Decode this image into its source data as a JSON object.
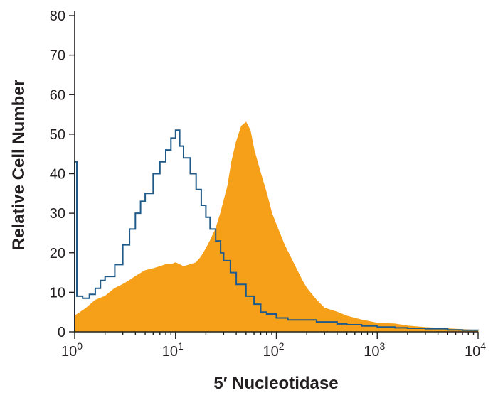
{
  "chart_data": {
    "type": "area",
    "xlabel": "5′ Nucleotidase",
    "ylabel": "Relative Cell Number",
    "x_scale": "log",
    "xlim": [
      1,
      10000
    ],
    "ylim": [
      0,
      80
    ],
    "x_ticks": [
      {
        "value": 1,
        "base": "10",
        "exp": "0"
      },
      {
        "value": 10,
        "base": "10",
        "exp": "1"
      },
      {
        "value": 100,
        "base": "10",
        "exp": "2"
      },
      {
        "value": 1000,
        "base": "10",
        "exp": "3"
      },
      {
        "value": 10000,
        "base": "10",
        "exp": "4"
      }
    ],
    "y_ticks": [
      0,
      10,
      20,
      30,
      40,
      50,
      60,
      70,
      80
    ],
    "grid": false,
    "legend": "none",
    "series": [
      {
        "style": "filled",
        "color": "#f6a01a",
        "points": [
          [
            1,
            4
          ],
          [
            1.3,
            6
          ],
          [
            1.6,
            8
          ],
          [
            2,
            9
          ],
          [
            2.5,
            11
          ],
          [
            3,
            12
          ],
          [
            3.5,
            13
          ],
          [
            4,
            14
          ],
          [
            5,
            15.5
          ],
          [
            6,
            16
          ],
          [
            7,
            16.5
          ],
          [
            8,
            17
          ],
          [
            9,
            17
          ],
          [
            10,
            17.5
          ],
          [
            12,
            16.5
          ],
          [
            14,
            17
          ],
          [
            16,
            17.5
          ],
          [
            18,
            19
          ],
          [
            20,
            21
          ],
          [
            22,
            23
          ],
          [
            25,
            26
          ],
          [
            28,
            30
          ],
          [
            30,
            33
          ],
          [
            33,
            37
          ],
          [
            36,
            43
          ],
          [
            40,
            48
          ],
          [
            45,
            52
          ],
          [
            50,
            53
          ],
          [
            55,
            51
          ],
          [
            60,
            46
          ],
          [
            70,
            40
          ],
          [
            80,
            35
          ],
          [
            90,
            30
          ],
          [
            100,
            27
          ],
          [
            120,
            22
          ],
          [
            150,
            17
          ],
          [
            180,
            13
          ],
          [
            200,
            11
          ],
          [
            250,
            8
          ],
          [
            300,
            6
          ],
          [
            400,
            5
          ],
          [
            500,
            4
          ],
          [
            700,
            3
          ],
          [
            1000,
            2.2
          ],
          [
            1500,
            2
          ],
          [
            2000,
            1.5
          ],
          [
            3000,
            1.1
          ],
          [
            5000,
            0.8
          ],
          [
            7000,
            0.6
          ],
          [
            10000,
            0.4
          ]
        ]
      },
      {
        "style": "line",
        "color": "#1f5a88",
        "points": [
          [
            1,
            43
          ],
          [
            1.05,
            9
          ],
          [
            1.2,
            8.5
          ],
          [
            1.4,
            9.5
          ],
          [
            1.6,
            11
          ],
          [
            1.8,
            13
          ],
          [
            2,
            14
          ],
          [
            2.5,
            17
          ],
          [
            3,
            22
          ],
          [
            3.5,
            26
          ],
          [
            4,
            30
          ],
          [
            4.5,
            33
          ],
          [
            5,
            35
          ],
          [
            6,
            40
          ],
          [
            7,
            43
          ],
          [
            8,
            46
          ],
          [
            9,
            49
          ],
          [
            10,
            51
          ],
          [
            11,
            47
          ],
          [
            12,
            44
          ],
          [
            14,
            40
          ],
          [
            16,
            36
          ],
          [
            18,
            32
          ],
          [
            20,
            29
          ],
          [
            22,
            26
          ],
          [
            25,
            23
          ],
          [
            28,
            20
          ],
          [
            30,
            18
          ],
          [
            35,
            15
          ],
          [
            40,
            12
          ],
          [
            50,
            9
          ],
          [
            60,
            7
          ],
          [
            70,
            5
          ],
          [
            80,
            4.5
          ],
          [
            100,
            3.5
          ],
          [
            130,
            3
          ],
          [
            160,
            3
          ],
          [
            200,
            3
          ],
          [
            250,
            2.5
          ],
          [
            300,
            2.5
          ],
          [
            400,
            2
          ],
          [
            500,
            1.8
          ],
          [
            700,
            1.5
          ],
          [
            1000,
            1.2
          ],
          [
            1500,
            1
          ],
          [
            2000,
            0.9
          ],
          [
            3000,
            0.8
          ],
          [
            5000,
            0.5
          ],
          [
            7000,
            0.4
          ],
          [
            10000,
            0.3
          ]
        ]
      }
    ]
  }
}
